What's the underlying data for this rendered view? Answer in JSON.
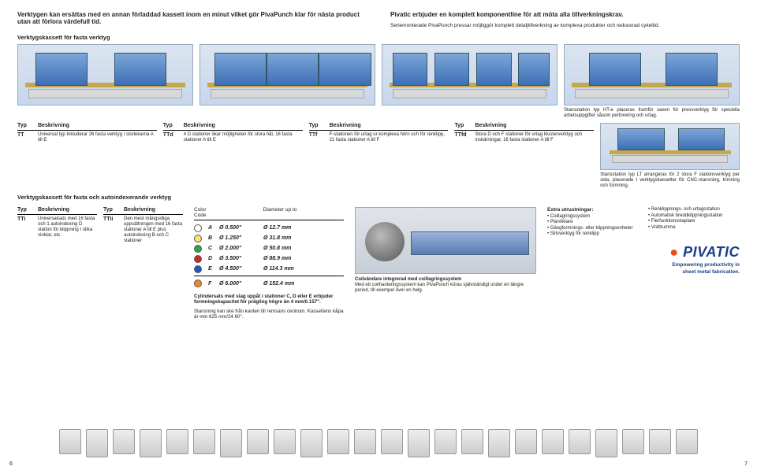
{
  "topbar": {
    "left_bold": "Verktygen kan ersättas med en annan förladdad kassett inom en minut vilket gör PivaPunch klar för nästa product utan att förlora värdefull tid.",
    "right_bold": "Pivatic erbjuder en komplett komponentline för att möta alla tillverkningskrav.",
    "right_sub": "Seriemonterade PivaPunch pressar möjliggör komplett detaljtillverkning av komplexa produkter och reducerad cykeltid."
  },
  "section1_title": "Verktygskassett för fasta verktyg",
  "machines_top_caption": "Stansstation typ HT-e placeras framför saxen för pressverktyg för speciella arbetsuppgifter såsom perforering och urtag.",
  "tables": {
    "head_typ": "Typ",
    "head_desc": "Beskrivning",
    "rows": [
      {
        "typ": "TT",
        "desc": "Universal typ Inkluderar 26 fasta verktyg i storlekarna A till E"
      },
      {
        "typ": "TTd",
        "desc": "4 D stationer ökar möjligheten för stora hål, 16 fasta stationer A till E"
      },
      {
        "typ": "TTf",
        "desc": "F-stationen för urtag ur komplexa hörn och för renklipp, 21 fasta stationer A till F"
      },
      {
        "typ": "TTfd",
        "desc": "Stora D och F stationer för urtag klusterverktyg och inskärningar, 16 fasta stationer A till F"
      }
    ]
  },
  "stans_lt_caption": "Stansstation typ LT arrangeras för 2 stora F stationsverktyg per sida, placerade I verktygskassetter för CNC-stansning, trimning och formning.",
  "section2_title": "Verktygskassett för fasta och autoindexerande verktyg",
  "tables2": {
    "rows": [
      {
        "typ": "TTi",
        "desc": "Universalsats med 16 fasta och 1 autoindexing D station för klippning I olika vinklar, etc."
      },
      {
        "typ": "TTii",
        "desc": "Den mest mångsidiga uppsättningen med 16 fasta stationer A till E plus autoindexing B och C stationer"
      }
    ]
  },
  "color_table": {
    "head1": "Color Code",
    "head2": "Diameter up to",
    "rows": [
      {
        "color": "#ffffff",
        "lab": "A",
        "d1": "Ø 0.500\"",
        "d2": "Ø 12.7 mm"
      },
      {
        "color": "#ffe36e",
        "lab": "B",
        "d1": "Ø 1.250\"",
        "d2": "Ø 31.8 mm"
      },
      {
        "color": "#2aa54a",
        "lab": "C",
        "d1": "Ø 2.000\"",
        "d2": "Ø 50.8 mm"
      },
      {
        "color": "#d6232a",
        "lab": "D",
        "d1": "Ø 3.500\"",
        "d2": "Ø 88.9 mm"
      },
      {
        "color": "#1f56c4",
        "lab": "E",
        "d1": "Ø 4.500\"",
        "d2": "Ø 114.3 mm"
      },
      {
        "color": "#f08a1d",
        "lab": "F",
        "d1": "Ø 6.000\"",
        "d2": "Ø 152.4 mm"
      }
    ]
  },
  "cyl_text": {
    "bold": "Cylindersats med slag uppåt i stationer C, D eller E erbjuder formningskapacitet för prägling högre än 4 mm/0.157\".",
    "p1": "Stansning kan ske från kanten till remsans centrum. Kassettens kåpa är min 625 mm/24.60\"."
  },
  "coil": {
    "bold": "Coilvändare integrerad med coillagringssystem",
    "p": "Med ett coilhanteringssystem kan PivaPunch köras självständigt under en längre period, till exempel över en helg."
  },
  "equip": {
    "left_head": "Extra utrustningar:",
    "left": [
      "Coillagringssystem",
      "Planriktare",
      "Gängformnings- eller klippningsenheter",
      "Slitsverktyg för renklipp"
    ],
    "right": [
      "Renklippnings- och urtagsstation",
      "Automatisk breddklippningsstation",
      "Flerfunktionsstaplare",
      "Vridtrumma"
    ]
  },
  "logo": {
    "brand": "PIVATIC",
    "tag1": "Empowering productivity in",
    "tag2": "sheet metal fabrication."
  },
  "page_left": "6",
  "page_right": "7"
}
